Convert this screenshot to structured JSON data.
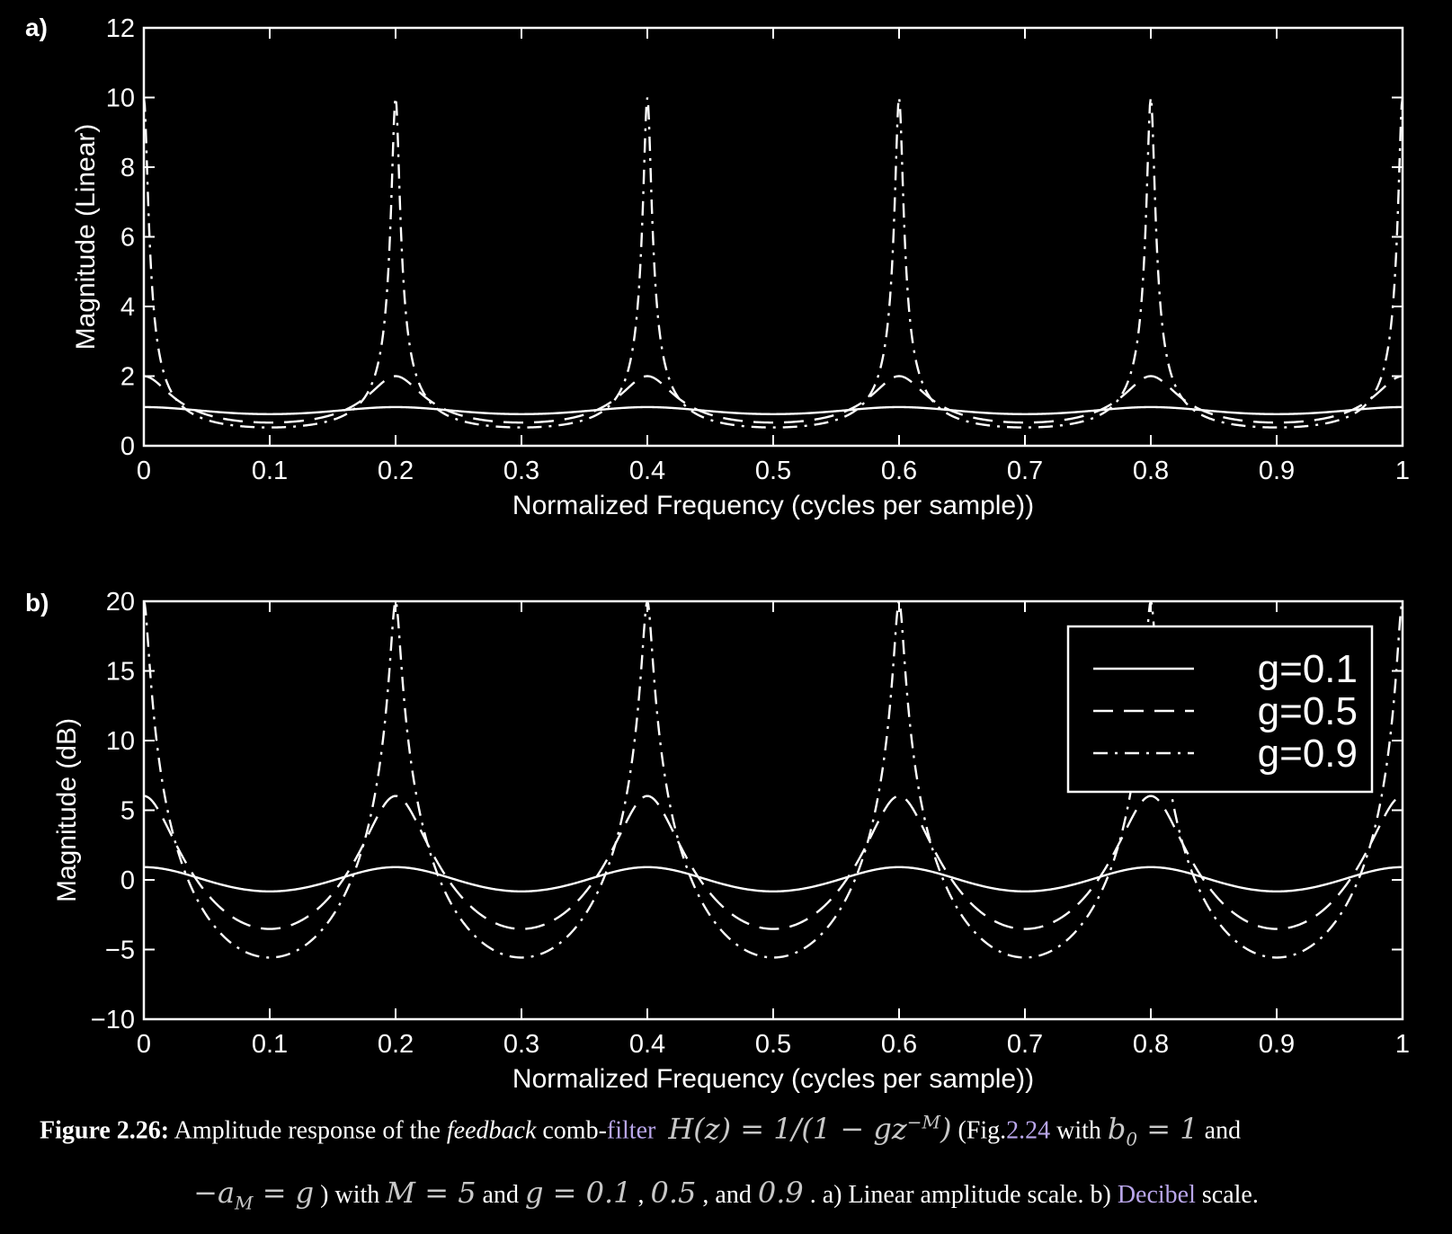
{
  "chart_data": [
    {
      "panel": "a)",
      "type": "line",
      "xlabel": "Normalized Frequency (cycles per sample))",
      "ylabel": "Magnitude (Linear)",
      "xlim": [
        0,
        1
      ],
      "ylim": [
        0,
        12
      ],
      "xticks": [
        "0",
        "0.1",
        "0.2",
        "0.3",
        "0.4",
        "0.5",
        "0.6",
        "0.7",
        "0.8",
        "0.9",
        "1"
      ],
      "yticks": [
        "0",
        "2",
        "4",
        "6",
        "8",
        "10",
        "12"
      ],
      "grid": false,
      "M": 5,
      "series": [
        {
          "name": "g=0.1",
          "style": "solid",
          "peak": 1.111,
          "trough": 0.909,
          "x": [
            0,
            0.1,
            0.2,
            0.3,
            0.4,
            0.5,
            0.6,
            0.7,
            0.8,
            0.9,
            1
          ],
          "values": [
            1.11,
            0.91,
            1.11,
            0.91,
            1.11,
            0.91,
            1.11,
            0.91,
            1.11,
            0.91,
            1.11
          ]
        },
        {
          "name": "g=0.5",
          "style": "dashed",
          "peak": 2.0,
          "trough": 0.667,
          "x": [
            0,
            0.1,
            0.2,
            0.3,
            0.4,
            0.5,
            0.6,
            0.7,
            0.8,
            0.9,
            1
          ],
          "values": [
            2.0,
            0.67,
            2.0,
            0.67,
            2.0,
            0.67,
            2.0,
            0.67,
            2.0,
            0.67,
            2.0
          ]
        },
        {
          "name": "g=0.9",
          "style": "dashdot",
          "peak": 10.0,
          "trough": 0.526,
          "x": [
            0,
            0.1,
            0.2,
            0.3,
            0.4,
            0.5,
            0.6,
            0.7,
            0.8,
            0.9,
            1
          ],
          "values": [
            10.0,
            0.53,
            10.0,
            0.53,
            10.0,
            0.53,
            10.0,
            0.53,
            10.0,
            0.53,
            10.0
          ]
        }
      ]
    },
    {
      "panel": "b)",
      "type": "line",
      "xlabel": "Normalized Frequency (cycles per sample))",
      "ylabel": "Magnitude (dB)",
      "xlim": [
        0,
        1
      ],
      "ylim": [
        -10,
        20
      ],
      "xticks": [
        "0",
        "0.1",
        "0.2",
        "0.3",
        "0.4",
        "0.5",
        "0.6",
        "0.7",
        "0.8",
        "0.9",
        "1"
      ],
      "yticks": [
        "−10",
        "−5",
        "0",
        "5",
        "10",
        "15",
        "20"
      ],
      "grid": false,
      "legend_position": "top-right",
      "M": 5,
      "series": [
        {
          "name": "g=0.1",
          "style": "solid",
          "peak": 0.92,
          "trough": -0.83,
          "x": [
            0,
            0.1,
            0.2,
            0.3,
            0.4,
            0.5,
            0.6,
            0.7,
            0.8,
            0.9,
            1
          ],
          "values": [
            0.92,
            -0.83,
            0.92,
            -0.83,
            0.92,
            -0.83,
            0.92,
            -0.83,
            0.92,
            -0.83,
            0.92
          ]
        },
        {
          "name": "g=0.5",
          "style": "dashed",
          "peak": 6.02,
          "trough": -3.52,
          "x": [
            0,
            0.1,
            0.2,
            0.3,
            0.4,
            0.5,
            0.6,
            0.7,
            0.8,
            0.9,
            1
          ],
          "values": [
            6.02,
            -3.52,
            6.02,
            -3.52,
            6.02,
            -3.52,
            6.02,
            -3.52,
            6.02,
            -3.52,
            6.02
          ]
        },
        {
          "name": "g=0.9",
          "style": "dashdot",
          "peak": 20.0,
          "trough": -5.58,
          "x": [
            0,
            0.1,
            0.2,
            0.3,
            0.4,
            0.5,
            0.6,
            0.7,
            0.8,
            0.9,
            1
          ],
          "values": [
            20.0,
            -5.58,
            20.0,
            -5.58,
            20.0,
            -5.58,
            20.0,
            -5.58,
            20.0,
            -5.58,
            20.0
          ]
        }
      ]
    }
  ],
  "caption": {
    "fig_label": "Figure 2.26:",
    "t1": " Amplitude response of the ",
    "feedback": "feedback",
    "t2": " comb-",
    "filter_link": "filter",
    "math_h": "H(z) = 1/(1 − gz",
    "math_h_sup": "−M",
    "math_h_end": ")",
    "t3": " (Fig.",
    "fig_link": "2.24",
    "t4": " with ",
    "math_b0": "b",
    "math_b0_sub": "0",
    "math_b0_end": " = 1",
    "t5": " and",
    "math_am": "−a",
    "math_am_sub": "M",
    "math_am_end": " = g",
    "t6": " ) with ",
    "math_m": "M = 5",
    "t7": " and ",
    "math_g": "g = 0.1",
    "t8": " , ",
    "math_05": "0.5",
    "t9": " , and ",
    "math_09": "0.9",
    "t10": " . a) Linear amplitude scale. b) ",
    "decibel_link": "Decibel",
    "t11": " scale."
  },
  "colors": {
    "background": "#000000",
    "foreground": "#ffffff",
    "link": "#b9a6ea"
  }
}
